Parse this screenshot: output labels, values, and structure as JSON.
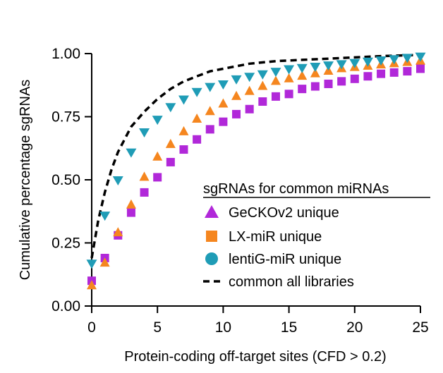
{
  "chart_data": {
    "type": "scatter",
    "title": "",
    "xlabel": "Protein-coding off-target sites (CFD > 0.2)",
    "ylabel": "Cumulative percentage sgRNAs",
    "xlim": [
      0,
      25
    ],
    "ylim": [
      0,
      1
    ],
    "x_ticks": [
      "0",
      "5",
      "10",
      "15",
      "20",
      "25"
    ],
    "y_ticks": [
      "0.00",
      "0.25",
      "0.50",
      "0.75",
      "1.00"
    ],
    "grid": false,
    "legend": {
      "title": "sgRNAs for common miRNAs",
      "placement": "bottom-right",
      "entries": [
        "GeCKOv2 unique",
        "LX-miR unique",
        "lentiG-miR unique",
        "common all libraries"
      ]
    },
    "series": [
      {
        "name": "GeCKOv2 unique",
        "marker": "square",
        "color": "#b128d9",
        "x": [
          0,
          1,
          2,
          3,
          4,
          5,
          6,
          7,
          8,
          9,
          10,
          11,
          12,
          13,
          14,
          15,
          16,
          17,
          18,
          19,
          20,
          21,
          22,
          23,
          24,
          25
        ],
        "y": [
          0.1,
          0.19,
          0.28,
          0.37,
          0.45,
          0.51,
          0.57,
          0.62,
          0.66,
          0.7,
          0.73,
          0.76,
          0.78,
          0.81,
          0.83,
          0.84,
          0.86,
          0.87,
          0.88,
          0.89,
          0.9,
          0.91,
          0.92,
          0.925,
          0.93,
          0.94
        ]
      },
      {
        "name": "LX-miR unique",
        "marker": "triangle-up",
        "color": "#f5861f",
        "x": [
          0,
          1,
          2,
          3,
          4,
          5,
          6,
          7,
          8,
          9,
          10,
          11,
          12,
          13,
          14,
          15,
          16,
          17,
          18,
          19,
          20,
          21,
          22,
          23,
          24,
          25
        ],
        "y": [
          0.08,
          0.17,
          0.29,
          0.4,
          0.51,
          0.59,
          0.64,
          0.69,
          0.74,
          0.77,
          0.8,
          0.83,
          0.85,
          0.87,
          0.89,
          0.9,
          0.91,
          0.92,
          0.93,
          0.94,
          0.945,
          0.95,
          0.955,
          0.96,
          0.965,
          0.97
        ]
      },
      {
        "name": "lentiG-miR unique",
        "marker": "triangle-down",
        "color": "#1f9cb6",
        "x": [
          0,
          1,
          2,
          3,
          4,
          5,
          6,
          7,
          8,
          9,
          10,
          11,
          12,
          13,
          14,
          15,
          16,
          17,
          18,
          19,
          20,
          21,
          22,
          23,
          24,
          25
        ],
        "y": [
          0.17,
          0.36,
          0.5,
          0.61,
          0.69,
          0.74,
          0.79,
          0.82,
          0.85,
          0.87,
          0.88,
          0.9,
          0.91,
          0.92,
          0.93,
          0.94,
          0.945,
          0.95,
          0.955,
          0.96,
          0.965,
          0.97,
          0.975,
          0.98,
          0.985,
          0.99
        ]
      },
      {
        "name": "common all libraries",
        "marker": "dashed-line",
        "color": "#000000",
        "x": [
          0,
          0.5,
          1,
          1.5,
          2,
          2.5,
          3,
          4,
          5,
          6,
          7,
          8,
          9,
          10,
          12,
          14,
          16,
          18,
          20,
          22,
          25
        ],
        "y": [
          0.19,
          0.34,
          0.45,
          0.54,
          0.61,
          0.66,
          0.71,
          0.77,
          0.82,
          0.86,
          0.89,
          0.91,
          0.93,
          0.94,
          0.96,
          0.97,
          0.975,
          0.98,
          0.985,
          0.99,
          0.995
        ]
      }
    ]
  },
  "colors": {
    "geckov2": "#b128d9",
    "lxmir": "#f5861f",
    "lentigmir": "#1f9cb6",
    "common": "#000000",
    "axis": "#000000"
  }
}
